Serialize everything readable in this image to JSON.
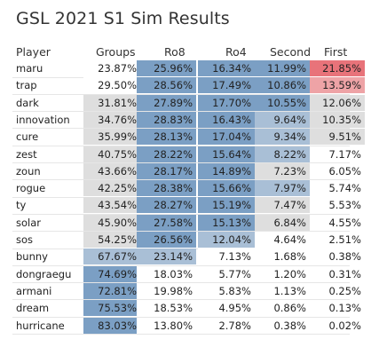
{
  "title": "GSL 2021 S1 Sim Results",
  "chart_data": {
    "type": "table",
    "columns": [
      "Player",
      "Groups",
      "Ro8",
      "Ro4",
      "Second",
      "First"
    ],
    "rows": [
      {
        "player": "maru",
        "values": [
          "23.87%",
          "25.96%",
          "16.34%",
          "11.99%",
          "21.85%"
        ]
      },
      {
        "player": "trap",
        "values": [
          "29.50%",
          "28.56%",
          "17.49%",
          "10.86%",
          "13.59%"
        ]
      },
      {
        "player": "dark",
        "values": [
          "31.81%",
          "27.89%",
          "17.70%",
          "10.55%",
          "12.06%"
        ]
      },
      {
        "player": "innovation",
        "values": [
          "34.76%",
          "28.83%",
          "16.43%",
          "9.64%",
          "10.35%"
        ]
      },
      {
        "player": "cure",
        "values": [
          "35.99%",
          "28.13%",
          "17.04%",
          "9.34%",
          "9.51%"
        ]
      },
      {
        "player": "zest",
        "values": [
          "40.75%",
          "28.22%",
          "15.64%",
          "8.22%",
          "7.17%"
        ]
      },
      {
        "player": "zoun",
        "values": [
          "43.66%",
          "28.17%",
          "14.89%",
          "7.23%",
          "6.05%"
        ]
      },
      {
        "player": "rogue",
        "values": [
          "42.25%",
          "28.38%",
          "15.66%",
          "7.97%",
          "5.74%"
        ]
      },
      {
        "player": "ty",
        "values": [
          "43.54%",
          "28.27%",
          "15.19%",
          "7.47%",
          "5.53%"
        ]
      },
      {
        "player": "solar",
        "values": [
          "45.90%",
          "27.58%",
          "15.13%",
          "6.84%",
          "4.55%"
        ]
      },
      {
        "player": "sos",
        "values": [
          "54.25%",
          "26.56%",
          "12.04%",
          "4.64%",
          "2.51%"
        ]
      },
      {
        "player": "bunny",
        "values": [
          "67.67%",
          "23.14%",
          "7.13%",
          "1.68%",
          "0.38%"
        ]
      },
      {
        "player": "dongraegu",
        "values": [
          "74.69%",
          "18.03%",
          "5.77%",
          "1.20%",
          "0.31%"
        ]
      },
      {
        "player": "armani",
        "values": [
          "72.81%",
          "19.98%",
          "5.83%",
          "1.13%",
          "0.25%"
        ]
      },
      {
        "player": "dream",
        "values": [
          "75.53%",
          "18.53%",
          "4.95%",
          "0.86%",
          "0.13%"
        ]
      },
      {
        "player": "hurricane",
        "values": [
          "83.03%",
          "13.80%",
          "2.78%",
          "0.38%",
          "0.02%"
        ]
      }
    ],
    "colors": {
      "high": "#7b9fc4",
      "mid": "#a9bfd6",
      "low": "#dedede",
      "white": "#ffffff",
      "first_top": "#e8737a",
      "first_second": "#eea3a6"
    }
  }
}
